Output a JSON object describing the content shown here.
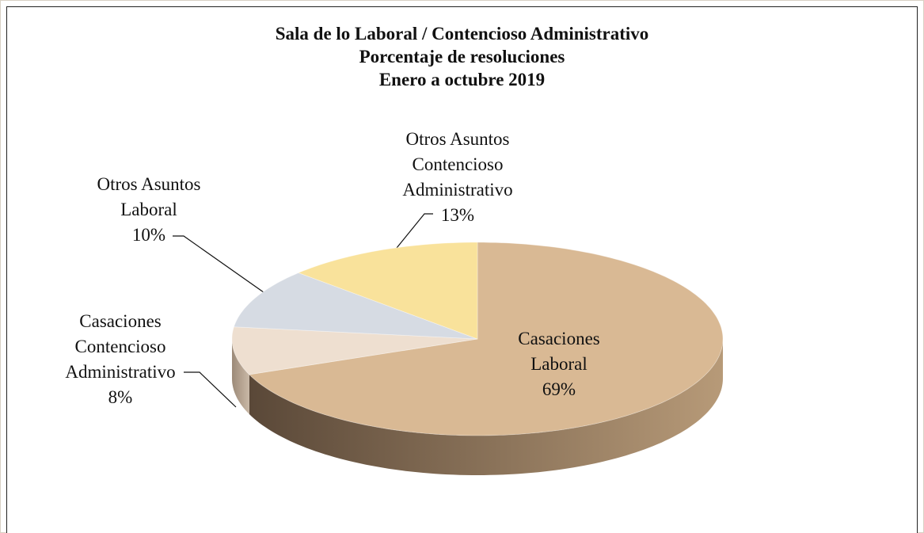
{
  "chart_data": {
    "type": "pie",
    "title": "Sala de lo Laboral / Contencioso Administrativo",
    "subtitle": [
      "Porcentaje de resoluciones",
      "Enero a octubre 2019"
    ],
    "categories": [
      "Casaciones Laboral",
      "Casaciones Contencioso Administrativo",
      "Otros Asuntos Laboral",
      "Otros Asuntos Contencioso Administrativo"
    ],
    "values": [
      69,
      8,
      10,
      13
    ],
    "value_labels": [
      "69%",
      "8%",
      "10%",
      "13%"
    ],
    "colors": [
      "#d9b994",
      "#eedfd0",
      "#d6dbe3",
      "#f9e29b"
    ],
    "side_colors": [
      [
        "#b79a78",
        "#5a4838"
      ],
      [
        "#c9b8a6",
        "#9c8a78"
      ],
      [
        "#a9aeb6",
        "#7e838b"
      ],
      [
        "#c9b37a",
        "#9c8854"
      ]
    ]
  }
}
